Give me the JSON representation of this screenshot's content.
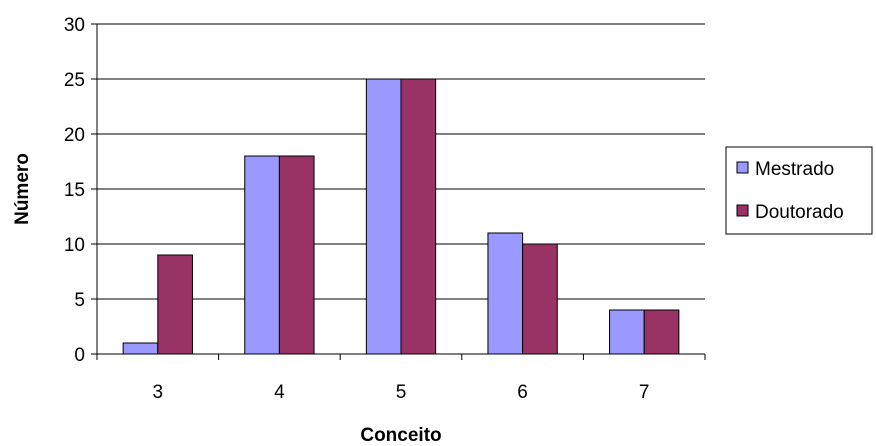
{
  "chart_data": {
    "type": "bar",
    "title": "",
    "xlabel": "Conceito",
    "ylabel": "Número",
    "categories": [
      "3",
      "4",
      "5",
      "6",
      "7"
    ],
    "series": [
      {
        "name": "Mestrado",
        "color": "#9999ff",
        "values": [
          1,
          18,
          25,
          11,
          4
        ]
      },
      {
        "name": "Doutorado",
        "color": "#993366",
        "values": [
          9,
          18,
          25,
          10,
          4
        ]
      }
    ],
    "ylim": [
      0,
      30
    ],
    "yticks": [
      "0",
      "5",
      "10",
      "15",
      "20",
      "25",
      "30"
    ],
    "grid": true,
    "legend_position": "right"
  }
}
